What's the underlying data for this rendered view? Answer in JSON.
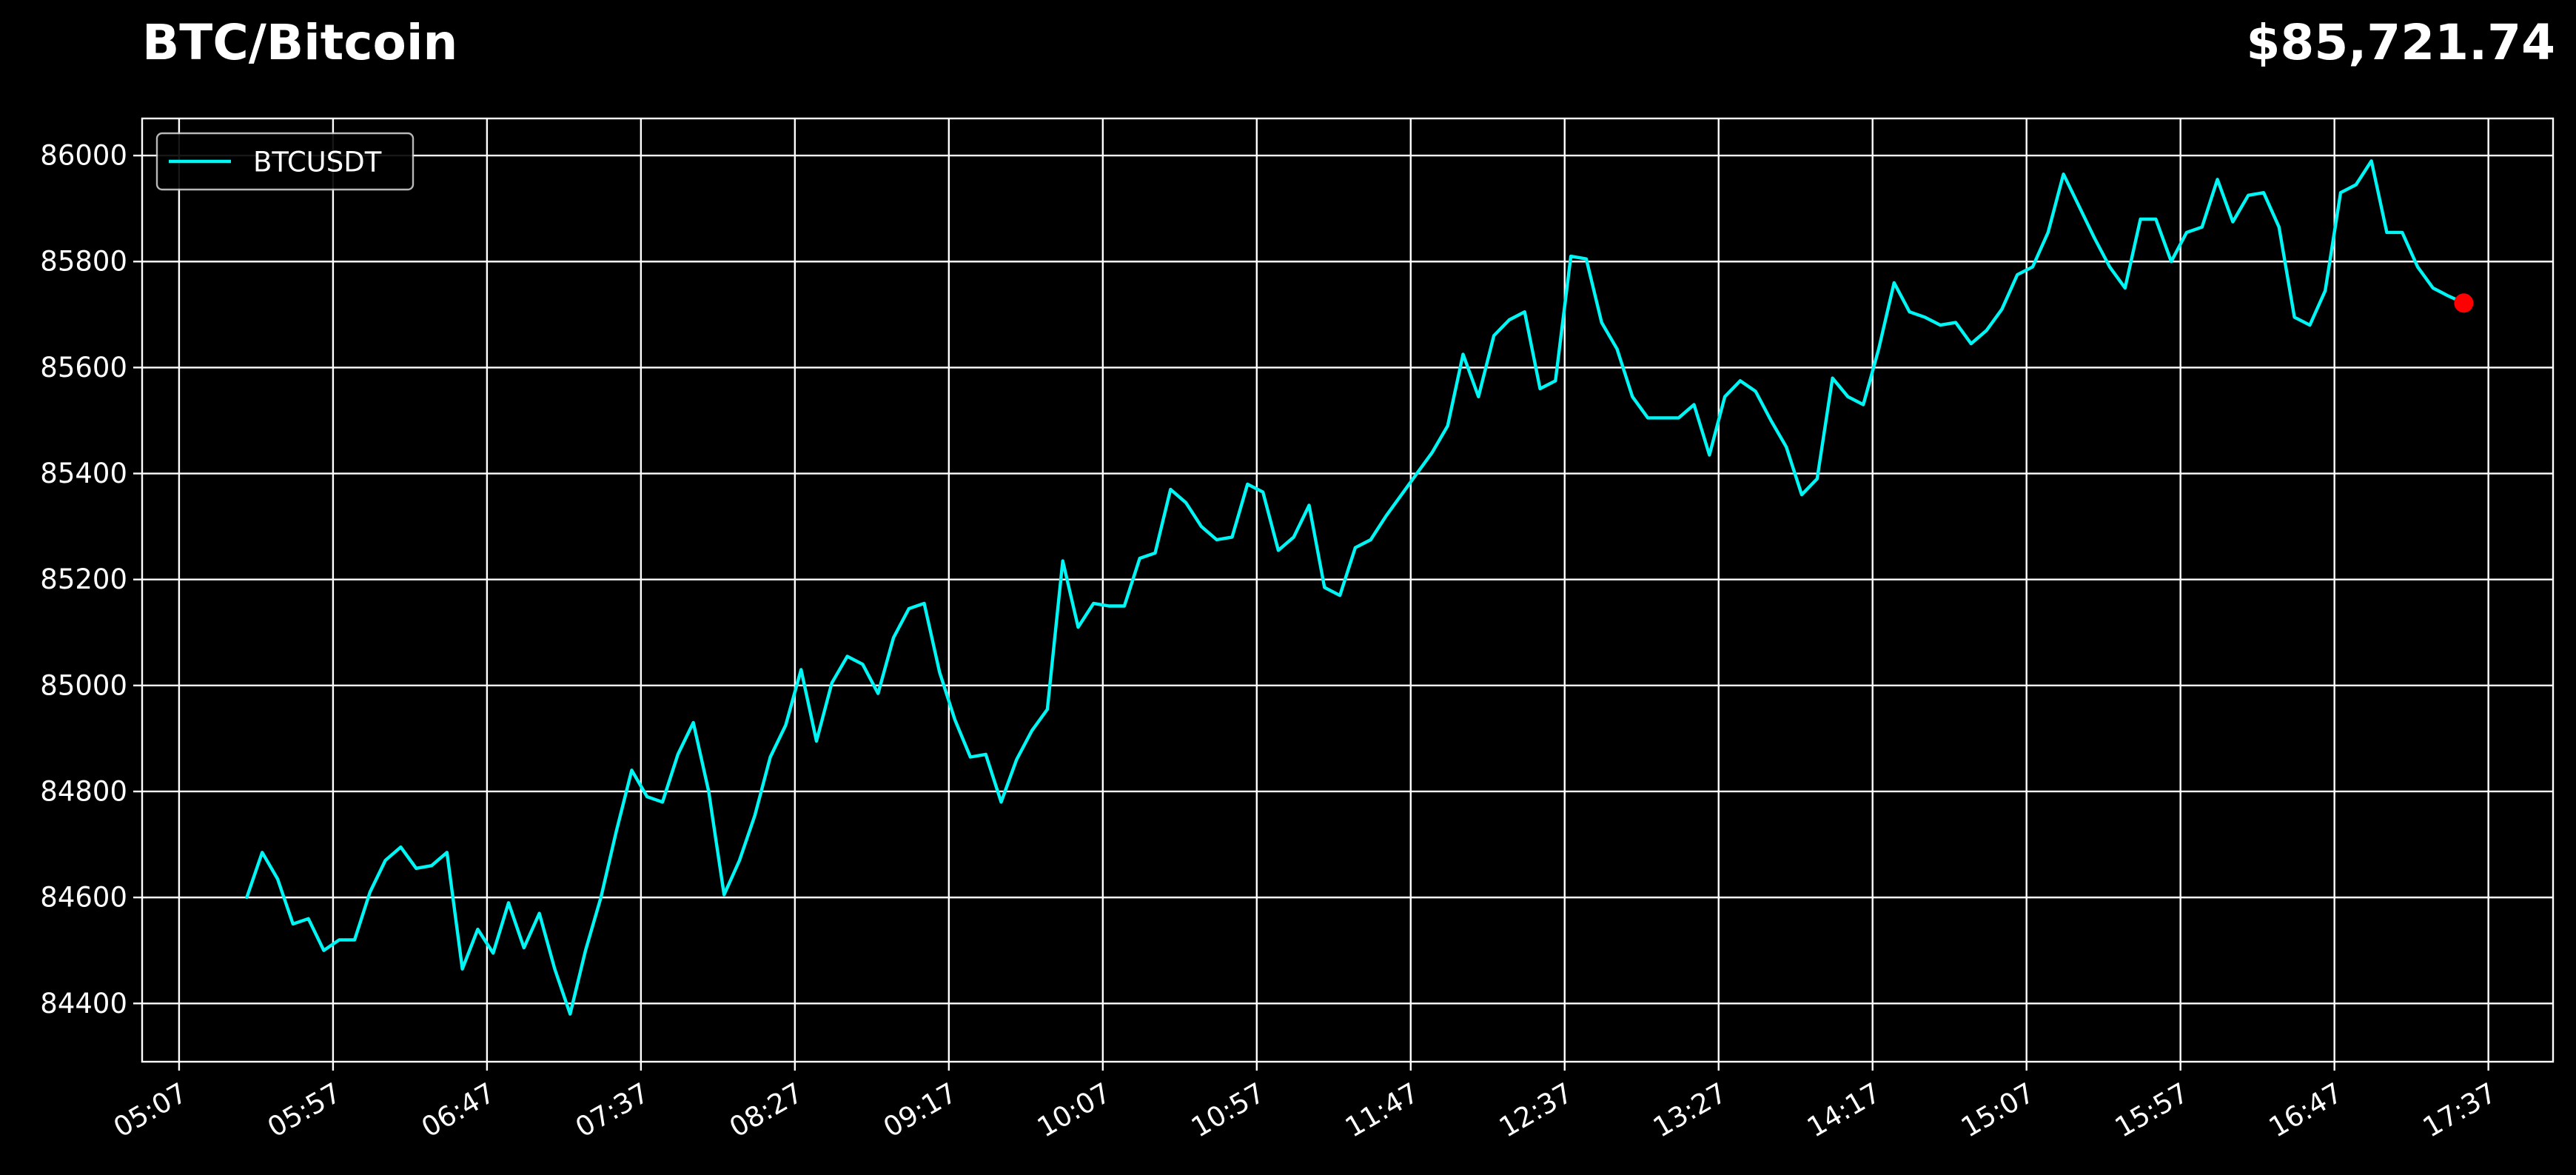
{
  "header": {
    "title": "BTC/Bitcoin",
    "price": "$85,721.74"
  },
  "colors": {
    "background": "#000000",
    "line": "#00f5f5",
    "marker": "#ff0000",
    "grid": "#ffffff",
    "text": "#ffffff"
  },
  "chart_data": {
    "type": "line",
    "title": "BTC/Bitcoin",
    "xlabel": "",
    "ylabel": "",
    "grid": true,
    "legend_position": "top-left",
    "xlim": [
      "04:55",
      "17:58"
    ],
    "ylim": [
      84290,
      86070
    ],
    "x_ticks": [
      "05:07",
      "05:57",
      "06:47",
      "07:37",
      "08:27",
      "09:17",
      "10:07",
      "10:57",
      "11:47",
      "12:37",
      "13:27",
      "14:17",
      "15:07",
      "15:57",
      "16:47",
      "17:37"
    ],
    "y_ticks": [
      84400,
      84600,
      84800,
      85000,
      85200,
      85400,
      85600,
      85800,
      86000
    ],
    "series": [
      {
        "name": "BTCUSDT",
        "x": [
          "05:29",
          "05:34",
          "05:39",
          "05:44",
          "05:49",
          "05:54",
          "05:59",
          "06:04",
          "06:09",
          "06:14",
          "06:19",
          "06:24",
          "06:29",
          "06:34",
          "06:39",
          "06:44",
          "06:49",
          "06:54",
          "06:59",
          "07:04",
          "07:09",
          "07:14",
          "07:19",
          "07:24",
          "07:29",
          "07:34",
          "07:39",
          "07:44",
          "07:49",
          "07:54",
          "07:59",
          "08:04",
          "08:09",
          "08:14",
          "08:19",
          "08:24",
          "08:29",
          "08:34",
          "08:39",
          "08:44",
          "08:49",
          "08:54",
          "08:59",
          "09:04",
          "09:09",
          "09:14",
          "09:19",
          "09:24",
          "09:29",
          "09:34",
          "09:39",
          "09:44",
          "09:49",
          "09:54",
          "09:59",
          "10:04",
          "10:09",
          "10:14",
          "10:19",
          "10:24",
          "10:29",
          "10:34",
          "10:39",
          "10:44",
          "10:49",
          "10:54",
          "10:59",
          "11:04",
          "11:09",
          "11:14",
          "11:19",
          "11:24",
          "11:29",
          "11:34",
          "11:39",
          "11:44",
          "11:49",
          "11:54",
          "11:59",
          "12:04",
          "12:09",
          "12:14",
          "12:19",
          "12:24",
          "12:29",
          "12:34",
          "12:39",
          "12:44",
          "12:49",
          "12:54",
          "12:59",
          "13:04",
          "13:09",
          "13:14",
          "13:19",
          "13:24",
          "13:29",
          "13:34",
          "13:39",
          "13:44",
          "13:49",
          "13:54",
          "13:59",
          "14:04",
          "14:09",
          "14:14",
          "14:19",
          "14:24",
          "14:29",
          "14:34",
          "14:39",
          "14:44",
          "14:49",
          "14:54",
          "14:59",
          "15:04",
          "15:09",
          "15:14",
          "15:19",
          "15:24",
          "15:29",
          "15:34",
          "15:39",
          "15:44",
          "15:49",
          "15:54",
          "15:59",
          "16:04",
          "16:09",
          "16:14",
          "16:19",
          "16:24",
          "16:29",
          "16:34",
          "16:39",
          "16:44",
          "16:49",
          "16:54",
          "16:59",
          "17:04",
          "17:09",
          "17:14",
          "17:19",
          "17:24",
          "17:29"
        ],
        "values": [
          84600,
          84685,
          84635,
          84550,
          84560,
          84500,
          84520,
          84520,
          84610,
          84670,
          84695,
          84655,
          84660,
          84685,
          84465,
          84540,
          84495,
          84590,
          84505,
          84570,
          84465,
          84380,
          84500,
          84600,
          84725,
          84840,
          84790,
          84780,
          84870,
          84930,
          84800,
          84605,
          84670,
          84755,
          84865,
          84925,
          85030,
          84895,
          85005,
          85055,
          85040,
          84985,
          85090,
          85145,
          85155,
          85025,
          84935,
          84865,
          84870,
          84780,
          84860,
          84915,
          84955,
          85235,
          85110,
          85155,
          85150,
          85150,
          85240,
          85250,
          85370,
          85345,
          85300,
          85275,
          85280,
          85380,
          85365,
          85255,
          85280,
          85340,
          85185,
          85170,
          85260,
          85275,
          85320,
          85360,
          85400,
          85440,
          85490,
          85625,
          85545,
          85660,
          85690,
          85705,
          85560,
          85575,
          85810,
          85805,
          85685,
          85635,
          85545,
          85505,
          85505,
          85505,
          85530,
          85435,
          85545,
          85575,
          85555,
          85500,
          85450,
          85360,
          85390,
          85580,
          85545,
          85530,
          85635,
          85760,
          85705,
          85695,
          85680,
          85685,
          85645,
          85670,
          85710,
          85775,
          85790,
          85855,
          85965,
          85905,
          85845,
          85790,
          85750,
          85880,
          85880,
          85800,
          85855,
          85865,
          85955,
          85875,
          85925,
          85930,
          85865,
          85695,
          85680,
          85745,
          85930,
          85945,
          85990,
          85855,
          85855,
          85790,
          85750,
          85735,
          85722
        ]
      }
    ],
    "last_point": {
      "x": "17:29",
      "y": 85721.74
    }
  }
}
